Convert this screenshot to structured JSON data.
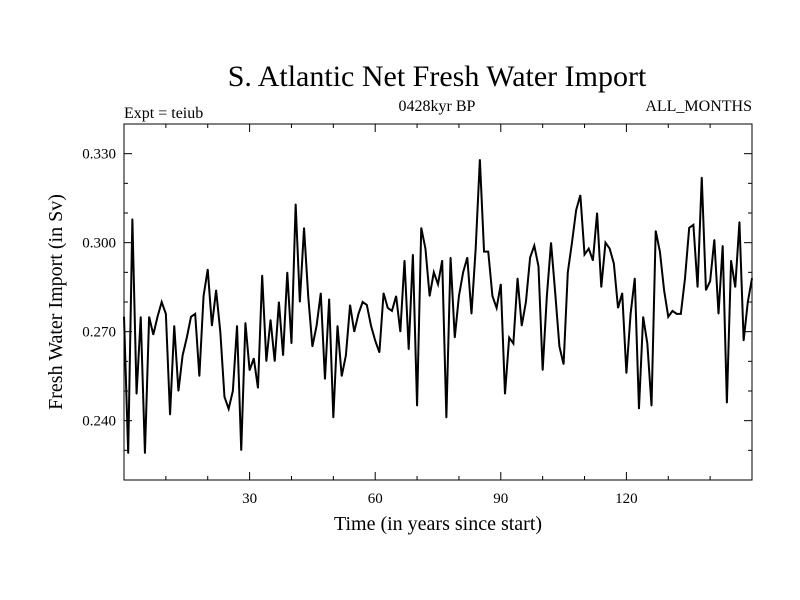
{
  "chart_data": {
    "type": "line",
    "title": "S. Atlantic Net Fresh Water Import",
    "subtitle_left": "Expt = teiub",
    "subtitle_center": "0428kyr BP",
    "subtitle_right": "ALL_MONTHS",
    "xlabel": "Time (in years since start)",
    "ylabel": "Fresh Water Import (in Sv)",
    "xlim": [
      0,
      150
    ],
    "ylim": [
      0.22,
      0.34
    ],
    "xticks": [
      30,
      60,
      90,
      120
    ],
    "xtick_labels": [
      "30",
      "60",
      "90",
      "120"
    ],
    "yticks": [
      0.24,
      0.27,
      0.3,
      0.33
    ],
    "ytick_labels": [
      "0.240",
      "0.270",
      "0.300",
      "0.330"
    ],
    "grid": false,
    "series": [
      {
        "name": "Fresh Water Import",
        "x": [
          0,
          1,
          2,
          3,
          4,
          5,
          6,
          7,
          8,
          9,
          10,
          11,
          12,
          13,
          14,
          15,
          16,
          17,
          18,
          19,
          20,
          21,
          22,
          23,
          24,
          25,
          26,
          27,
          28,
          29,
          30,
          31,
          32,
          33,
          34,
          35,
          36,
          37,
          38,
          39,
          40,
          41,
          42,
          43,
          44,
          45,
          46,
          47,
          48,
          49,
          50,
          51,
          52,
          53,
          54,
          55,
          56,
          57,
          58,
          59,
          60,
          61,
          62,
          63,
          64,
          65,
          66,
          67,
          68,
          69,
          70,
          71,
          72,
          73,
          74,
          75,
          76,
          77,
          78,
          79,
          80,
          81,
          82,
          83,
          84,
          85,
          86,
          87,
          88,
          89,
          90,
          91,
          92,
          93,
          94,
          95,
          96,
          97,
          98,
          99,
          100,
          101,
          102,
          103,
          104,
          105,
          106,
          107,
          108,
          109,
          110,
          111,
          112,
          113,
          114,
          115,
          116,
          117,
          118,
          119,
          120,
          121,
          122,
          123,
          124,
          125,
          126,
          127,
          128,
          129,
          130,
          131,
          132,
          133,
          134,
          135,
          136,
          137,
          138,
          139,
          140,
          141,
          142,
          143,
          144,
          145,
          146,
          147,
          148,
          149,
          150
        ],
        "values": [
          0.275,
          0.229,
          0.308,
          0.249,
          0.275,
          0.229,
          0.275,
          0.269,
          0.275,
          0.28,
          0.276,
          0.242,
          0.272,
          0.25,
          0.262,
          0.268,
          0.275,
          0.276,
          0.255,
          0.282,
          0.291,
          0.272,
          0.284,
          0.27,
          0.248,
          0.244,
          0.25,
          0.272,
          0.23,
          0.273,
          0.257,
          0.261,
          0.251,
          0.289,
          0.26,
          0.274,
          0.26,
          0.28,
          0.262,
          0.29,
          0.266,
          0.313,
          0.28,
          0.305,
          0.282,
          0.265,
          0.272,
          0.283,
          0.254,
          0.281,
          0.241,
          0.272,
          0.255,
          0.262,
          0.279,
          0.27,
          0.276,
          0.28,
          0.279,
          0.272,
          0.267,
          0.263,
          0.283,
          0.278,
          0.277,
          0.282,
          0.27,
          0.294,
          0.264,
          0.296,
          0.245,
          0.305,
          0.298,
          0.282,
          0.29,
          0.286,
          0.294,
          0.241,
          0.295,
          0.268,
          0.282,
          0.29,
          0.295,
          0.276,
          0.298,
          0.328,
          0.297,
          0.297,
          0.282,
          0.278,
          0.286,
          0.249,
          0.268,
          0.266,
          0.288,
          0.272,
          0.28,
          0.295,
          0.299,
          0.292,
          0.257,
          0.282,
          0.3,
          0.283,
          0.265,
          0.259,
          0.29,
          0.3,
          0.311,
          0.316,
          0.296,
          0.298,
          0.294,
          0.31,
          0.285,
          0.3,
          0.298,
          0.293,
          0.278,
          0.283,
          0.256,
          0.276,
          0.288,
          0.244,
          0.275,
          0.266,
          0.245,
          0.304,
          0.297,
          0.284,
          0.275,
          0.277,
          0.276,
          0.276,
          0.288,
          0.305,
          0.306,
          0.285,
          0.322,
          0.284,
          0.287,
          0.301,
          0.276,
          0.299,
          0.246,
          0.294,
          0.285,
          0.307,
          0.267,
          0.28,
          0.288
        ]
      }
    ]
  }
}
